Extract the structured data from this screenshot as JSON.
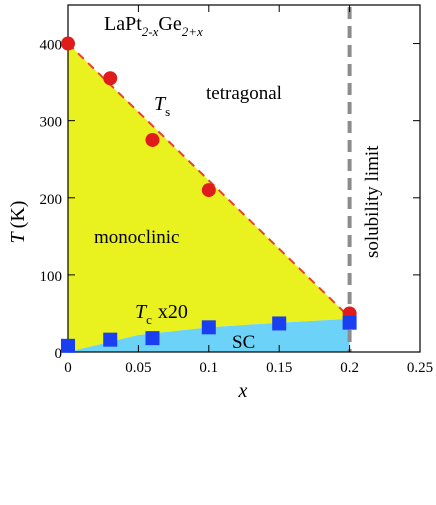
{
  "chart_data": {
    "type": "scatter",
    "title_parts": {
      "main": "LaPt",
      "sub1": "2-x",
      "mid": "Ge",
      "sub2": "2+x"
    },
    "xlabel": "x",
    "ylabel_main": "T",
    "ylabel_unit": "(K)",
    "xlim": [
      0,
      0.25
    ],
    "ylim": [
      0,
      450
    ],
    "xticks": [
      0,
      0.05,
      0.1,
      0.15,
      0.2,
      0.25
    ],
    "xtick_labels": [
      "0",
      "0.05",
      "0.1",
      "0.15",
      "0.2",
      "0.25"
    ],
    "yticks": [
      0,
      100,
      200,
      300,
      400
    ],
    "ytick_labels": [
      "0",
      "100",
      "200",
      "300",
      "400"
    ],
    "series": [
      {
        "name": "Ts",
        "marker": "circle",
        "color": "#e01b1b",
        "x": [
          0,
          0.03,
          0.06,
          0.1,
          0.2
        ],
        "y": [
          400,
          355,
          275,
          210,
          50
        ]
      },
      {
        "name": "Tc x20",
        "marker": "square",
        "color": "#1a3ff0",
        "x": [
          0,
          0.03,
          0.06,
          0.1,
          0.15,
          0.2
        ],
        "y": [
          8,
          16,
          18,
          32,
          37,
          38
        ]
      }
    ],
    "ts_line": {
      "x": [
        0,
        0.2
      ],
      "y": [
        400,
        45
      ],
      "color": "#e8432b"
    },
    "tc_boundary": {
      "x": [
        0,
        0.05,
        0.1,
        0.15,
        0.2
      ],
      "y": [
        0,
        22,
        32,
        38,
        43
      ]
    },
    "solubility_limit_x": 0.2,
    "regions": {
      "monoclinic": {
        "label": "monoclinic",
        "color": "#e9f21f"
      },
      "sc": {
        "label": "SC",
        "color": "#6cd2f7"
      },
      "tetragonal": {
        "label": "tetragonal"
      }
    },
    "annotations": {
      "ts_main": "T",
      "ts_sub": "s",
      "tc_main": "T",
      "tc_sub": "c",
      "tc_suffix": "x20",
      "solubility": "solubility limit"
    }
  }
}
